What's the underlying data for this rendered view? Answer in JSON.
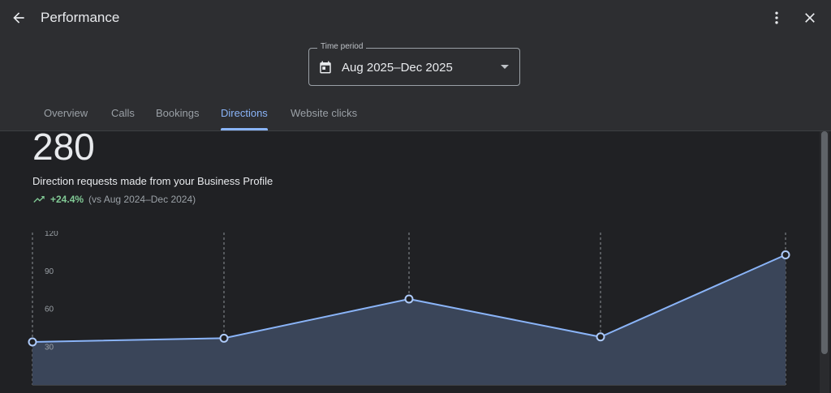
{
  "header": {
    "title": "Performance",
    "back_icon": "arrow-back-icon",
    "more_icon": "more-vert-icon",
    "close_icon": "close-icon"
  },
  "time_period": {
    "label": "Time period",
    "value": "Aug 2025–Dec 2025",
    "icon": "calendar-icon"
  },
  "tabs": [
    {
      "label": "Overview"
    },
    {
      "label": "Calls"
    },
    {
      "label": "Bookings"
    },
    {
      "label": "Directions",
      "active": true
    },
    {
      "label": "Website clicks"
    }
  ],
  "summary": {
    "total": "280",
    "description": "Direction requests made from your Business Profile",
    "change": "+24.4%",
    "comparison": "(vs Aug 2024–Dec 2024)"
  },
  "colors": {
    "accent": "#8ab4f8",
    "positive": "#81c995",
    "area_fill": "#3a4559"
  },
  "chart_data": {
    "type": "area",
    "y_ticks": [
      "120",
      "90",
      "60",
      "30"
    ],
    "ylim": [
      0,
      120
    ],
    "series": [
      {
        "values": [
          34,
          37,
          68,
          38,
          103
        ]
      }
    ],
    "grid": "vertical-dashed"
  }
}
